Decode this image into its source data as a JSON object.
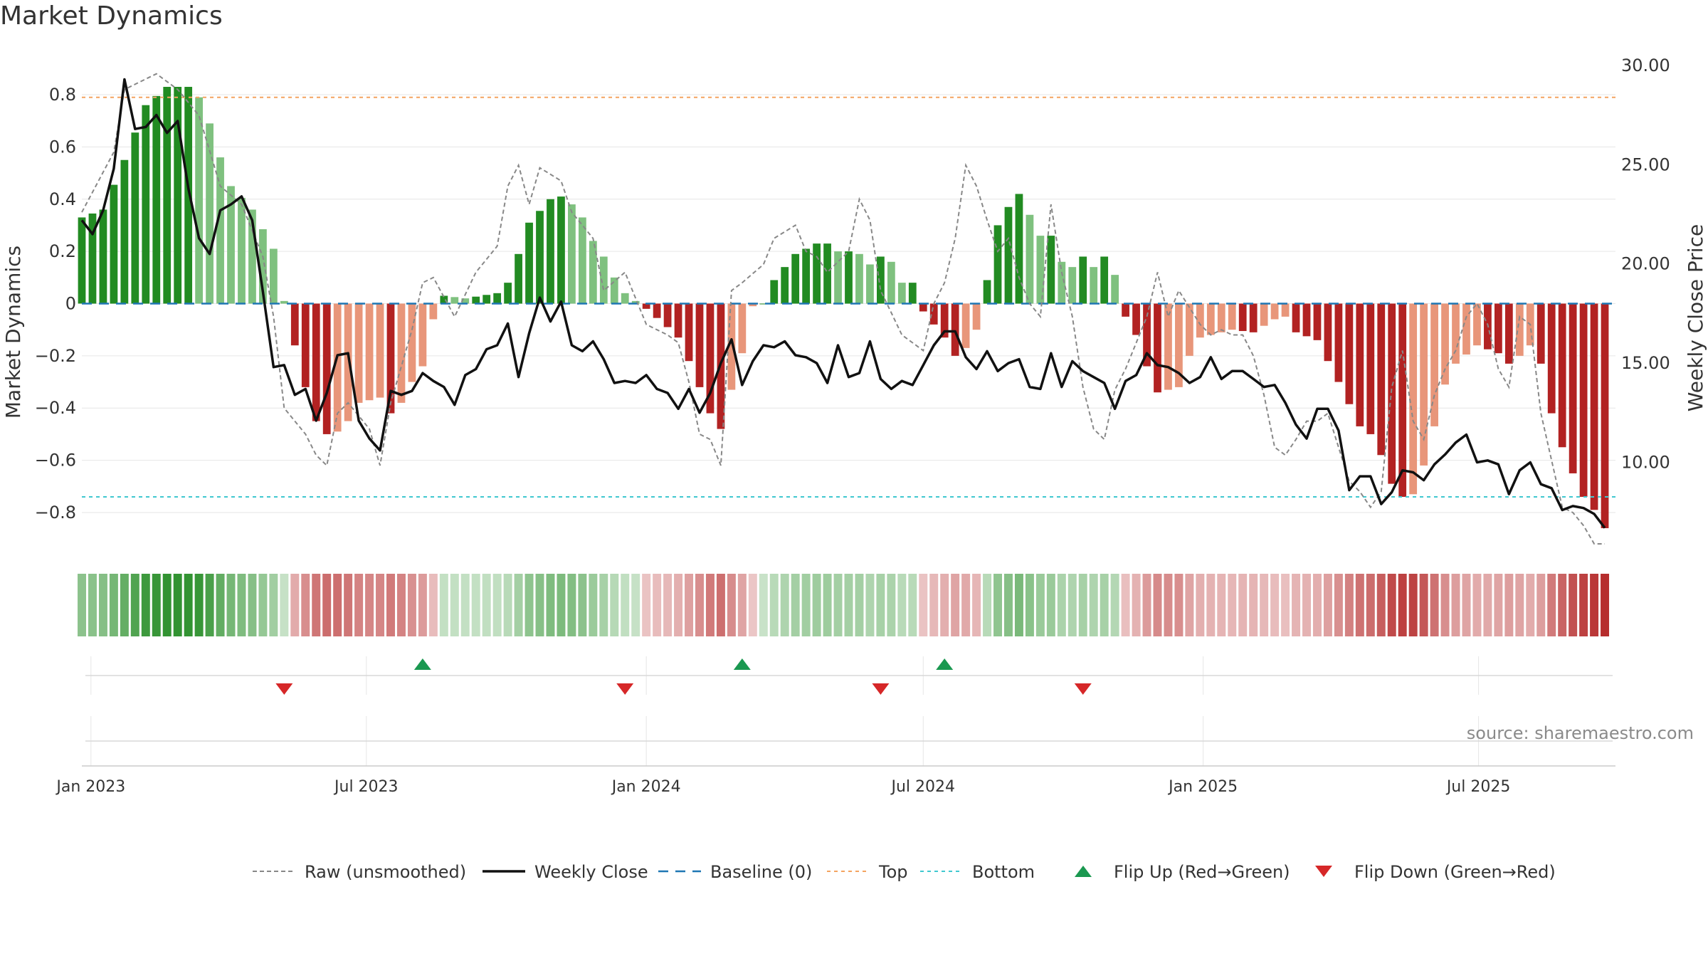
{
  "title": "Market Dynamics",
  "source": "source: sharemaestro.com",
  "colors": {
    "strong_green": "#228b22",
    "light_green": "#7fc17f",
    "strong_red": "#b22222",
    "light_red": "#e8967a",
    "top_line": "#f4a460",
    "bottom_line": "#40c8d0",
    "baseline": "#1f77b4",
    "raw": "#888888",
    "close": "#111111",
    "flip_up": "#1a9850",
    "flip_down": "#d62728"
  },
  "chart_data": {
    "type": "bar+line",
    "title": "Market Dynamics",
    "ylabel_left": "Market Dynamics",
    "ylabel_right": "Weekly Close Price",
    "y_left_range": [
      -0.95,
      0.95
    ],
    "y_right_range": [
      5.5,
      30.5
    ],
    "y_left_ticks": [
      0.8,
      0.6,
      0.4,
      0.2,
      0,
      -0.2,
      -0.4,
      -0.6,
      -0.8
    ],
    "y_left_tick_labels": [
      "0.8",
      "0.6",
      "0.4",
      "0.2",
      "0",
      "−0.2",
      "−0.4",
      "−0.6",
      "−0.8"
    ],
    "y_right_ticks": [
      30,
      25,
      20,
      15,
      10
    ],
    "y_right_tick_labels": [
      "30.00",
      "25.00",
      "20.00",
      "15.00",
      "10.00"
    ],
    "top_level": 0.79,
    "bottom_level": -0.74,
    "x_start": "2022-12-26",
    "x_end": "2025-09-29",
    "x_ticks": [
      {
        "date": "2023-01-01",
        "label": "Jan 2023"
      },
      {
        "date": "2023-07-01",
        "label": "Jul 2023"
      },
      {
        "date": "2024-01-01",
        "label": "Jan 2024"
      },
      {
        "date": "2024-07-01",
        "label": "Jul 2024"
      },
      {
        "date": "2025-01-01",
        "label": "Jan 2025"
      },
      {
        "date": "2025-07-01",
        "label": "Jul 2025"
      }
    ],
    "dynamics_anchors": [
      [
        0,
        0.33
      ],
      [
        2,
        0.36
      ],
      [
        4,
        0.55
      ],
      [
        6,
        0.76
      ],
      [
        8,
        0.83
      ],
      [
        10,
        0.83
      ],
      [
        11,
        0.79
      ],
      [
        12,
        0.69
      ],
      [
        13,
        0.56
      ],
      [
        14,
        0.45
      ],
      [
        16,
        0.36
      ],
      [
        18,
        0.21
      ],
      [
        19,
        0.01
      ],
      [
        20,
        -0.16
      ],
      [
        21,
        -0.32
      ],
      [
        22,
        -0.45
      ],
      [
        23,
        -0.5
      ],
      [
        24,
        -0.49
      ],
      [
        25,
        -0.45
      ],
      [
        26,
        -0.38
      ],
      [
        27,
        -0.37
      ],
      [
        28,
        -0.36
      ],
      [
        29,
        -0.42
      ],
      [
        30,
        -0.38
      ],
      [
        31,
        -0.3
      ],
      [
        32,
        -0.24
      ],
      [
        33,
        -0.06
      ],
      [
        34,
        0.03
      ],
      [
        36,
        0.02
      ],
      [
        39,
        0.04
      ],
      [
        40,
        0.08
      ],
      [
        41,
        0.19
      ],
      [
        42,
        0.31
      ],
      [
        44,
        0.4
      ],
      [
        45,
        0.41
      ],
      [
        46,
        0.38
      ],
      [
        47,
        0.33
      ],
      [
        48,
        0.24
      ],
      [
        49,
        0.18
      ],
      [
        50,
        0.1
      ],
      [
        51,
        0.04
      ],
      [
        52,
        0.01
      ],
      [
        53,
        -0.02
      ],
      [
        55,
        -0.09
      ],
      [
        56,
        -0.13
      ],
      [
        57,
        -0.22
      ],
      [
        58,
        -0.32
      ],
      [
        59,
        -0.42
      ],
      [
        60,
        -0.48
      ],
      [
        61,
        -0.33
      ],
      [
        62,
        -0.19
      ],
      [
        63,
        -0.01
      ],
      [
        64,
        0.0
      ],
      [
        65,
        0.09
      ],
      [
        66,
        0.14
      ],
      [
        67,
        0.19
      ],
      [
        69,
        0.23
      ],
      [
        70,
        0.23
      ],
      [
        71,
        0.2
      ],
      [
        72,
        0.2
      ],
      [
        73,
        0.19
      ],
      [
        74,
        0.15
      ],
      [
        75,
        0.18
      ],
      [
        76,
        0.16
      ],
      [
        77,
        0.08
      ],
      [
        78,
        0.08
      ],
      [
        79,
        -0.03
      ],
      [
        80,
        -0.08
      ],
      [
        81,
        -0.13
      ],
      [
        82,
        -0.2
      ],
      [
        83,
        -0.17
      ],
      [
        84,
        -0.1
      ],
      [
        85,
        0.09
      ],
      [
        86,
        0.3
      ],
      [
        87,
        0.37
      ],
      [
        88,
        0.42
      ],
      [
        89,
        0.34
      ],
      [
        90,
        0.26
      ],
      [
        91,
        0.26
      ],
      [
        92,
        0.16
      ],
      [
        93,
        0.14
      ],
      [
        94,
        0.18
      ],
      [
        95,
        0.14
      ],
      [
        96,
        0.18
      ],
      [
        97,
        0.11
      ],
      [
        98,
        -0.05
      ],
      [
        99,
        -0.12
      ],
      [
        100,
        -0.24
      ],
      [
        101,
        -0.34
      ],
      [
        103,
        -0.32
      ],
      [
        104,
        -0.2
      ],
      [
        105,
        -0.13
      ],
      [
        108,
        -0.1
      ],
      [
        110,
        -0.11
      ],
      [
        112,
        -0.06
      ],
      [
        113,
        -0.05
      ],
      [
        114,
        -0.11
      ],
      [
        116,
        -0.14
      ],
      [
        118,
        -0.3
      ],
      [
        120,
        -0.47
      ],
      [
        121,
        -0.5
      ],
      [
        122,
        -0.58
      ],
      [
        123,
        -0.69
      ],
      [
        124,
        -0.74
      ],
      [
        125,
        -0.73
      ],
      [
        126,
        -0.62
      ],
      [
        127,
        -0.47
      ],
      [
        128,
        -0.31
      ],
      [
        129,
        -0.23
      ],
      [
        131,
        -0.16
      ],
      [
        133,
        -0.19
      ],
      [
        134,
        -0.23
      ],
      [
        135,
        -0.2
      ],
      [
        136,
        -0.16
      ],
      [
        137,
        -0.23
      ],
      [
        138,
        -0.42
      ],
      [
        139,
        -0.55
      ],
      [
        140,
        -0.65
      ],
      [
        141,
        -0.74
      ],
      [
        142,
        -0.79
      ],
      [
        143,
        -0.86
      ]
    ],
    "close_anchors": [
      [
        0,
        22.2
      ],
      [
        1,
        21.5
      ],
      [
        2,
        22.7
      ],
      [
        3,
        24.8
      ],
      [
        4,
        29.3
      ],
      [
        5,
        26.8
      ],
      [
        6,
        26.9
      ],
      [
        7,
        27.5
      ],
      [
        8,
        26.6
      ],
      [
        9,
        27.2
      ],
      [
        10,
        23.8
      ],
      [
        11,
        21.3
      ],
      [
        12,
        20.5
      ],
      [
        13,
        22.7
      ],
      [
        14,
        23.0
      ],
      [
        15,
        23.4
      ],
      [
        16,
        22.2
      ],
      [
        17,
        18.6
      ],
      [
        18,
        14.8
      ],
      [
        19,
        14.9
      ],
      [
        20,
        13.4
      ],
      [
        21,
        13.7
      ],
      [
        22,
        12.1
      ],
      [
        23,
        13.5
      ],
      [
        24,
        15.4
      ],
      [
        25,
        15.5
      ],
      [
        26,
        12.1
      ],
      [
        27,
        11.2
      ],
      [
        28,
        10.6
      ],
      [
        29,
        13.6
      ],
      [
        30,
        13.4
      ],
      [
        31,
        13.6
      ],
      [
        32,
        14.5
      ],
      [
        33,
        14.1
      ],
      [
        34,
        13.8
      ],
      [
        35,
        12.9
      ],
      [
        36,
        14.4
      ],
      [
        37,
        14.7
      ],
      [
        38,
        15.7
      ],
      [
        39,
        15.9
      ],
      [
        40,
        17.0
      ],
      [
        41,
        14.3
      ],
      [
        42,
        16.5
      ],
      [
        43,
        18.3
      ],
      [
        44,
        17.1
      ],
      [
        45,
        18.1
      ],
      [
        46,
        15.9
      ],
      [
        47,
        15.6
      ],
      [
        48,
        16.1
      ],
      [
        49,
        15.2
      ],
      [
        50,
        14.0
      ],
      [
        51,
        14.1
      ],
      [
        52,
        14.0
      ],
      [
        53,
        14.4
      ],
      [
        54,
        13.7
      ],
      [
        55,
        13.5
      ],
      [
        56,
        12.7
      ],
      [
        57,
        13.7
      ],
      [
        58,
        12.5
      ],
      [
        59,
        13.5
      ],
      [
        60,
        15.0
      ],
      [
        61,
        16.2
      ],
      [
        62,
        13.9
      ],
      [
        63,
        15.1
      ],
      [
        64,
        15.9
      ],
      [
        65,
        15.8
      ],
      [
        66,
        16.1
      ],
      [
        67,
        15.4
      ],
      [
        68,
        15.3
      ],
      [
        69,
        15.0
      ],
      [
        70,
        14.0
      ],
      [
        71,
        15.9
      ],
      [
        72,
        14.3
      ],
      [
        73,
        14.5
      ],
      [
        74,
        16.1
      ],
      [
        75,
        14.2
      ],
      [
        76,
        13.7
      ],
      [
        77,
        14.1
      ],
      [
        78,
        13.9
      ],
      [
        79,
        14.9
      ],
      [
        80,
        15.9
      ],
      [
        81,
        16.6
      ],
      [
        82,
        16.6
      ],
      [
        83,
        15.3
      ],
      [
        84,
        14.7
      ],
      [
        85,
        15.6
      ],
      [
        86,
        14.6
      ],
      [
        87,
        15.0
      ],
      [
        88,
        15.2
      ],
      [
        89,
        13.8
      ],
      [
        90,
        13.7
      ],
      [
        91,
        15.5
      ],
      [
        92,
        13.8
      ],
      [
        93,
        15.1
      ],
      [
        94,
        14.6
      ],
      [
        95,
        14.3
      ],
      [
        96,
        14.0
      ],
      [
        97,
        12.7
      ],
      [
        98,
        14.1
      ],
      [
        99,
        14.4
      ],
      [
        100,
        15.5
      ],
      [
        101,
        14.9
      ],
      [
        102,
        14.8
      ],
      [
        103,
        14.5
      ],
      [
        104,
        14.0
      ],
      [
        105,
        14.3
      ],
      [
        106,
        15.3
      ],
      [
        107,
        14.2
      ],
      [
        108,
        14.6
      ],
      [
        109,
        14.6
      ],
      [
        110,
        14.2
      ],
      [
        111,
        13.8
      ],
      [
        112,
        13.9
      ],
      [
        113,
        13.0
      ],
      [
        114,
        11.9
      ],
      [
        115,
        11.2
      ],
      [
        116,
        12.7
      ],
      [
        117,
        12.7
      ],
      [
        118,
        11.6
      ],
      [
        119,
        8.6
      ],
      [
        120,
        9.3
      ],
      [
        121,
        9.3
      ],
      [
        122,
        7.9
      ],
      [
        123,
        8.5
      ],
      [
        124,
        9.6
      ],
      [
        125,
        9.5
      ],
      [
        126,
        9.1
      ],
      [
        127,
        9.9
      ],
      [
        128,
        10.4
      ],
      [
        129,
        11.0
      ],
      [
        130,
        11.4
      ],
      [
        131,
        10.0
      ],
      [
        132,
        10.1
      ],
      [
        133,
        9.9
      ],
      [
        134,
        8.4
      ],
      [
        135,
        9.6
      ],
      [
        136,
        10.0
      ],
      [
        137,
        8.9
      ],
      [
        138,
        8.7
      ],
      [
        139,
        7.6
      ],
      [
        140,
        7.8
      ],
      [
        141,
        7.7
      ],
      [
        142,
        7.4
      ],
      [
        143,
        6.7
      ]
    ],
    "raw_anchors": [
      [
        0,
        0.35
      ],
      [
        3,
        0.58
      ],
      [
        4,
        0.82
      ],
      [
        7,
        0.88
      ],
      [
        9,
        0.82
      ],
      [
        11,
        0.72
      ],
      [
        13,
        0.45
      ],
      [
        15,
        0.38
      ],
      [
        17,
        0.18
      ],
      [
        18,
        -0.05
      ],
      [
        19,
        -0.4
      ],
      [
        21,
        -0.5
      ],
      [
        22,
        -0.58
      ],
      [
        23,
        -0.62
      ],
      [
        24,
        -0.42
      ],
      [
        25,
        -0.38
      ],
      [
        27,
        -0.48
      ],
      [
        28,
        -0.62
      ],
      [
        29,
        -0.38
      ],
      [
        31,
        -0.1
      ],
      [
        32,
        0.08
      ],
      [
        33,
        0.1
      ],
      [
        35,
        -0.05
      ],
      [
        37,
        0.12
      ],
      [
        39,
        0.22
      ],
      [
        40,
        0.45
      ],
      [
        41,
        0.53
      ],
      [
        42,
        0.38
      ],
      [
        43,
        0.52
      ],
      [
        45,
        0.47
      ],
      [
        46,
        0.35
      ],
      [
        48,
        0.25
      ],
      [
        49,
        0.05
      ],
      [
        51,
        0.12
      ],
      [
        53,
        -0.08
      ],
      [
        55,
        -0.12
      ],
      [
        56,
        -0.15
      ],
      [
        57,
        -0.3
      ],
      [
        58,
        -0.5
      ],
      [
        59,
        -0.52
      ],
      [
        60,
        -0.62
      ],
      [
        61,
        0.05
      ],
      [
        62,
        0.08
      ],
      [
        64,
        0.15
      ],
      [
        65,
        0.25
      ],
      [
        67,
        0.3
      ],
      [
        68,
        0.2
      ],
      [
        69,
        0.18
      ],
      [
        70,
        0.12
      ],
      [
        72,
        0.2
      ],
      [
        73,
        0.4
      ],
      [
        74,
        0.32
      ],
      [
        75,
        0.05
      ],
      [
        77,
        -0.12
      ],
      [
        79,
        -0.18
      ],
      [
        80,
        0.0
      ],
      [
        81,
        0.08
      ],
      [
        82,
        0.25
      ],
      [
        83,
        0.53
      ],
      [
        84,
        0.45
      ],
      [
        85,
        0.32
      ],
      [
        86,
        0.2
      ],
      [
        87,
        0.25
      ],
      [
        88,
        0.1
      ],
      [
        89,
        0.0
      ],
      [
        90,
        -0.05
      ],
      [
        91,
        0.38
      ],
      [
        92,
        0.12
      ],
      [
        93,
        -0.05
      ],
      [
        94,
        -0.32
      ],
      [
        95,
        -0.48
      ],
      [
        96,
        -0.52
      ],
      [
        97,
        -0.33
      ],
      [
        98,
        -0.25
      ],
      [
        99,
        -0.15
      ],
      [
        100,
        -0.05
      ],
      [
        101,
        0.12
      ],
      [
        102,
        -0.05
      ],
      [
        103,
        0.05
      ],
      [
        105,
        -0.08
      ],
      [
        106,
        -0.12
      ],
      [
        107,
        -0.1
      ],
      [
        108,
        -0.12
      ],
      [
        109,
        -0.12
      ],
      [
        110,
        -0.2
      ],
      [
        111,
        -0.35
      ],
      [
        112,
        -0.55
      ],
      [
        113,
        -0.58
      ],
      [
        114,
        -0.52
      ],
      [
        115,
        -0.45
      ],
      [
        116,
        -0.45
      ],
      [
        117,
        -0.42
      ],
      [
        118,
        -0.55
      ],
      [
        119,
        -0.68
      ],
      [
        120,
        -0.72
      ],
      [
        121,
        -0.78
      ],
      [
        122,
        -0.72
      ],
      [
        123,
        -0.32
      ],
      [
        124,
        -0.18
      ],
      [
        125,
        -0.45
      ],
      [
        126,
        -0.52
      ],
      [
        127,
        -0.35
      ],
      [
        128,
        -0.25
      ],
      [
        129,
        -0.18
      ],
      [
        130,
        -0.05
      ],
      [
        131,
        0.0
      ],
      [
        132,
        -0.08
      ],
      [
        133,
        -0.25
      ],
      [
        134,
        -0.32
      ],
      [
        135,
        -0.05
      ],
      [
        136,
        -0.08
      ],
      [
        137,
        -0.42
      ],
      [
        138,
        -0.6
      ],
      [
        139,
        -0.78
      ],
      [
        140,
        -0.8
      ],
      [
        141,
        -0.85
      ],
      [
        142,
        -0.92
      ],
      [
        143,
        -0.92
      ]
    ],
    "flip_up_weeks": [
      32,
      62,
      81
    ],
    "flip_down_weeks": [
      19,
      51,
      75,
      94
    ],
    "legend": [
      {
        "key": "raw",
        "label": "Raw (unsmoothed)"
      },
      {
        "key": "close",
        "label": "Weekly Close"
      },
      {
        "key": "baseline",
        "label": "Baseline (0)"
      },
      {
        "key": "top",
        "label": "Top"
      },
      {
        "key": "bottom",
        "label": "Bottom"
      },
      {
        "key": "flip_up",
        "label": "Flip Up (Red→Green)"
      },
      {
        "key": "flip_down",
        "label": "Flip Down (Green→Red)"
      }
    ]
  }
}
